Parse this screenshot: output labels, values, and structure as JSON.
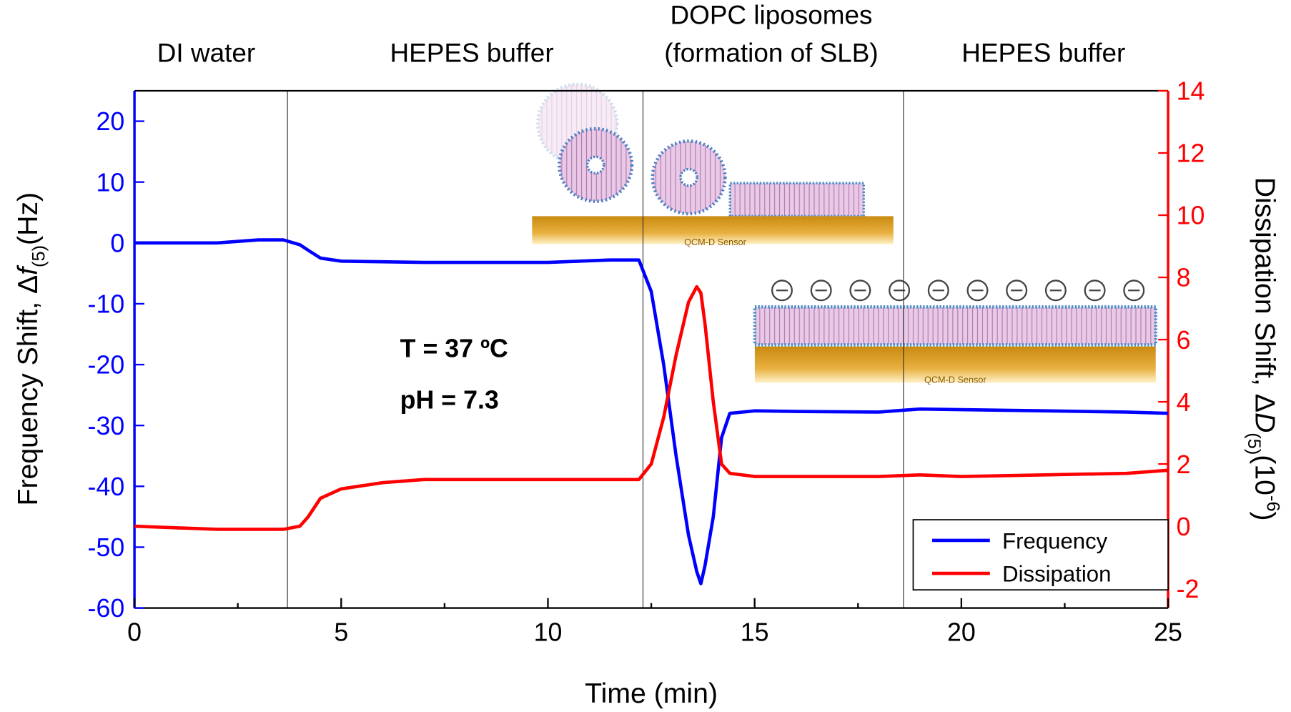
{
  "chart_data": {
    "type": "line",
    "xlabel": "Time (min)",
    "ylabel": {
      "text": "Frequency Shift, Δ",
      "symbol": "f",
      "subscript": "(5)",
      "unit": "(Hz)"
    },
    "y2label": {
      "text": "Dissipation Shift, Δ",
      "symbol": "D",
      "subscript": "(5)",
      "unit_open": "(10",
      "exponent": "-6",
      "unit_close": ")"
    },
    "phase_labels": [
      [
        "DI water"
      ],
      [
        "HEPES buffer"
      ],
      [
        "DOPC liposomes",
        "(formation of SLB)"
      ],
      [
        "HEPES buffer"
      ]
    ],
    "phase_boundaries": [
      3.7,
      12.3,
      18.6
    ],
    "conditions": [
      "T = 37 ºC",
      "pH = 7.3"
    ],
    "inset_labels": [
      "QCM-D Sensor",
      "QCM-D Sensor"
    ],
    "x": [
      0,
      2,
      3,
      3.6,
      4,
      4.2,
      4.5,
      5,
      6,
      7,
      8,
      10,
      11.5,
      12.2,
      12.5,
      12.8,
      13.1,
      13.4,
      13.6,
      13.7,
      13.8,
      14.0,
      14.2,
      14.4,
      15,
      16,
      18,
      19,
      20,
      22,
      24,
      25
    ],
    "series": [
      {
        "name": "Frequency",
        "color": "#0000ff",
        "axis": "y",
        "values": [
          0,
          0,
          0.5,
          0.5,
          -0.3,
          -1.2,
          -2.5,
          -3,
          -3.1,
          -3.2,
          -3.2,
          -3.2,
          -2.8,
          -2.8,
          -8,
          -20,
          -35,
          -48,
          -54,
          -56,
          -53,
          -45,
          -32,
          -28,
          -27.6,
          -27.7,
          -27.8,
          -27.3,
          -27.4,
          -27.6,
          -27.8,
          -28
        ]
      },
      {
        "name": "Dissipation",
        "color": "#ff0000",
        "axis": "y2",
        "values": [
          0,
          -0.1,
          -0.1,
          -0.1,
          0,
          0.3,
          0.9,
          1.2,
          1.4,
          1.5,
          1.5,
          1.5,
          1.5,
          1.5,
          2,
          3.5,
          5.5,
          7.2,
          7.7,
          7.5,
          6.5,
          4,
          2,
          1.7,
          1.6,
          1.6,
          1.6,
          1.65,
          1.6,
          1.65,
          1.7,
          1.8
        ]
      }
    ],
    "xlim": [
      0,
      25
    ],
    "xticks": [
      0,
      5,
      10,
      15,
      20,
      25
    ],
    "ylim": [
      -60,
      25
    ],
    "yticks": [
      -60,
      -50,
      -40,
      -30,
      -20,
      -10,
      0,
      10,
      20
    ],
    "y2lim": [
      -2.63,
      14
    ],
    "y2ticks": [
      -2,
      0,
      2,
      4,
      6,
      8,
      10,
      12,
      14
    ],
    "y_color": "#0000ff",
    "y2_color": "#ff0000",
    "legend": "lower right"
  }
}
